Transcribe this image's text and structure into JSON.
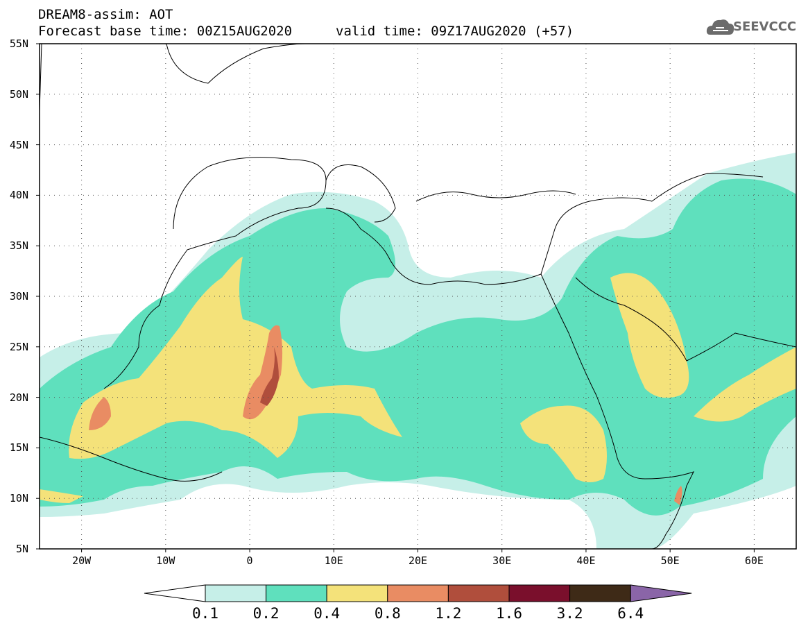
{
  "header": {
    "line1": "DREAM8-assim: AOT",
    "line2_left": "Forecast base time: 00Z15AUG2020",
    "line2_right": "valid time: 09Z17AUG2020 (+57)"
  },
  "logo": {
    "text": "SEEVCCC",
    "icon": "cloud-logo-icon"
  },
  "map": {
    "lat_labels": [
      "55N",
      "50N",
      "45N",
      "40N",
      "35N",
      "30N",
      "25N",
      "20N",
      "15N",
      "10N",
      "5N"
    ],
    "lon_labels": [
      "20W",
      "10W",
      "0",
      "10E",
      "20E",
      "30E",
      "40E",
      "50E",
      "60E"
    ],
    "lat_range": [
      5,
      55
    ],
    "lon_range": [
      -25,
      65
    ]
  },
  "colorbar": {
    "thresholds": [
      "0.1",
      "0.2",
      "0.4",
      "0.8",
      "1.2",
      "1.6",
      "3.2",
      "6.4"
    ],
    "colors": [
      "#ffffff",
      "#c6efe8",
      "#5fe0bd",
      "#f4e27a",
      "#e98c63",
      "#b04e3c",
      "#7a0f2c",
      "#3e2a17",
      "#8a65a8"
    ]
  }
}
